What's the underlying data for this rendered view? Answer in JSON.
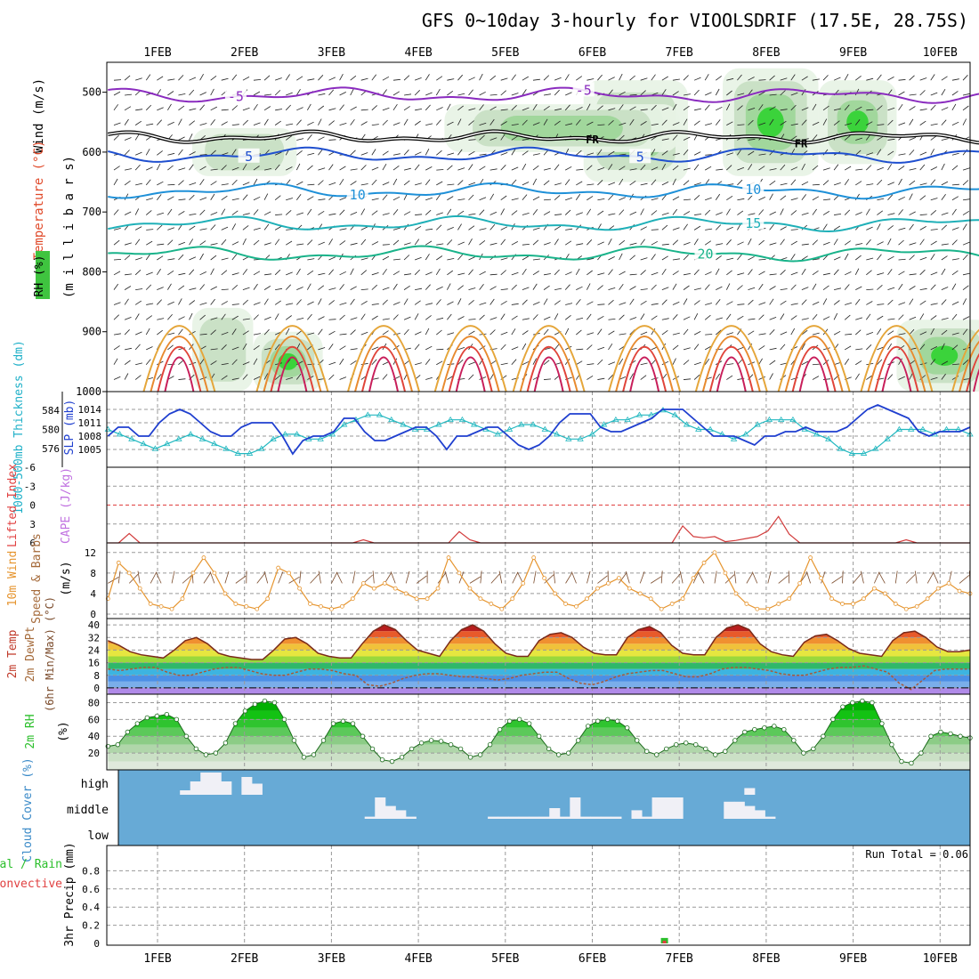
{
  "title": "GFS 0~10day 3-hourly for VIOOLSDRIF (17.5E, 28.75S)",
  "day_labels": [
    "1FEB",
    "2FEB",
    "3FEB",
    "4FEB",
    "5FEB",
    "6FEB",
    "7FEB",
    "8FEB",
    "9FEB",
    "10FEB"
  ],
  "chart_data": [
    {
      "type": "heatmap",
      "panel": "upper-air",
      "ylabel_parts": [
        "Wind (m/s)",
        "Temperature (°C)",
        "RH (%)"
      ],
      "ylabel_pressure": "(m i l l i b a r s)",
      "y_ticks": [
        500,
        600,
        700,
        800,
        900,
        1000
      ],
      "ylim": [
        450,
        1000
      ],
      "freezing_label": "FR",
      "temperature_contours": [
        {
          "value": "-5",
          "color": "#8a2bbf",
          "base_level": 505,
          "labels": [
            {
              "x": 0.9,
              "text": "-5"
            },
            {
              "x": 4.9,
              "text": "-5"
            }
          ]
        },
        {
          "value": "5",
          "color": "#1f4fcf",
          "base_level": 605,
          "labels": [
            {
              "x": 1.05,
              "text": "5"
            },
            {
              "x": 5.55,
              "text": "5"
            }
          ]
        },
        {
          "value": "10",
          "color": "#1e90d8",
          "base_level": 665,
          "labels": [
            {
              "x": 2.3,
              "text": "10"
            },
            {
              "x": 6.85,
              "text": "10"
            }
          ]
        },
        {
          "value": "15",
          "color": "#1fb0b8",
          "base_level": 720,
          "labels": [
            {
              "x": 6.85,
              "text": "15"
            }
          ]
        },
        {
          "value": "20",
          "color": "#19b38a",
          "base_level": 770,
          "labels": [
            {
              "x": 6.3,
              "text": "20"
            }
          ]
        }
      ],
      "freezing_level": 575,
      "moist_regions": [
        {
          "x": [
            4.9,
            6.1
          ],
          "p": [
            480,
            650
          ],
          "level": 3
        },
        {
          "x": [
            6.5,
            7.6
          ],
          "p": [
            460,
            640
          ],
          "level": 3
        },
        {
          "x": [
            7.6,
            8.5
          ],
          "p": [
            480,
            620
          ],
          "level": 3
        },
        {
          "x": [
            3.3,
            6.0
          ],
          "p": [
            520,
            600
          ],
          "level": 2
        },
        {
          "x": [
            0.4,
            1.6
          ],
          "p": [
            560,
            640
          ],
          "level": 1
        },
        {
          "x": [
            0.4,
            1.1
          ],
          "p": [
            860,
            1000
          ],
          "level": 1
        },
        {
          "x": [
            1.1,
            1.9
          ],
          "p": [
            900,
            1000
          ],
          "level": 3
        },
        {
          "x": [
            8.5,
            9.6
          ],
          "p": [
            880,
            1000
          ],
          "level": 3
        }
      ]
    },
    {
      "type": "line",
      "panel": "thickness-slp",
      "ylabel_left": "1000-500mb Thickness (dm)",
      "ylabel_right": "SLP (mb)",
      "y_ticks_left": [
        576,
        580,
        584
      ],
      "y_ticks_right": [
        1005,
        1008,
        1011,
        1014
      ],
      "series": [
        {
          "name": "SLP",
          "color": "#1f3fcf",
          "values": [
            1008,
            1010,
            1010,
            1008,
            1008,
            1011,
            1013,
            1014,
            1013,
            1011,
            1009,
            1008,
            1008,
            1010,
            1011,
            1011,
            1011,
            1008,
            1004,
            1007,
            1008,
            1008,
            1009,
            1012,
            1012,
            1009,
            1007,
            1007,
            1008,
            1009,
            1010,
            1010,
            1008,
            1005,
            1008,
            1008,
            1009,
            1010,
            1010,
            1008,
            1006,
            1005,
            1006,
            1008,
            1011,
            1013,
            1013,
            1013,
            1010,
            1009,
            1009,
            1010,
            1011,
            1012,
            1014,
            1014,
            1014,
            1012,
            1010,
            1008,
            1008,
            1008,
            1007,
            1006,
            1008,
            1008,
            1009,
            1009,
            1010,
            1009,
            1009,
            1009,
            1010,
            1012,
            1014,
            1015,
            1014,
            1013,
            1012,
            1009,
            1008,
            1009,
            1009,
            1009,
            1010
          ]
        },
        {
          "name": "Thickness",
          "color": "#22b8c0",
          "values": [
            580,
            579,
            578,
            577,
            576,
            577,
            578,
            579,
            578,
            577,
            576,
            575,
            575,
            576,
            578,
            579,
            579,
            578,
            578,
            579,
            581,
            582,
            583,
            583,
            582,
            581,
            580,
            580,
            581,
            582,
            582,
            581,
            580,
            579,
            580,
            581,
            581,
            580,
            579,
            578,
            578,
            579,
            581,
            582,
            582,
            583,
            583,
            584,
            583,
            581,
            580,
            580,
            579,
            578,
            579,
            581,
            582,
            582,
            582,
            580,
            579,
            578,
            576,
            575,
            575,
            576,
            578,
            580,
            580,
            580,
            579,
            580,
            580,
            579
          ]
        }
      ]
    },
    {
      "type": "line",
      "panel": "stability",
      "ylabel_left": "Lifted Index",
      "ylabel_right": "CAPE (J/kg)",
      "y_ticks": [
        "-6",
        "-3",
        "0",
        "3",
        "6"
      ],
      "ylim": [
        -6,
        6
      ],
      "series": [
        {
          "name": "Lifted Index",
          "color": "#d23c3c",
          "values": [
            6,
            6,
            4.5,
            6,
            6,
            6,
            6,
            6,
            6,
            6,
            6,
            6,
            6,
            6,
            6,
            6,
            6,
            6,
            6,
            6,
            6,
            6,
            6,
            6,
            5.5,
            6,
            6,
            6,
            6,
            6,
            6,
            6,
            6,
            4.2,
            5.5,
            6,
            6,
            6,
            6,
            6,
            6,
            6,
            6,
            6,
            6,
            6,
            6,
            6,
            6,
            6,
            6,
            6,
            6,
            6,
            3.3,
            5,
            5.2,
            5,
            5.8,
            5.6,
            5.3,
            5,
            4.1,
            1.8,
            4.6,
            6,
            6,
            6,
            6,
            6,
            6,
            6,
            6,
            6,
            6,
            5.5,
            6,
            6,
            6,
            6,
            6,
            6
          ]
        }
      ]
    },
    {
      "type": "line",
      "panel": "wind10m",
      "ylabel_left": "10m Wind",
      "ylabel_mid": "Speed & Barbs",
      "ylabel_units": "(m/s)",
      "y_ticks": [
        0,
        4,
        8,
        12
      ],
      "ylim": [
        0,
        13
      ],
      "series": [
        {
          "name": "10m Wind Speed",
          "color": "#e6952f",
          "values": [
            3,
            10,
            8,
            5,
            2,
            1.5,
            1,
            3,
            8,
            11,
            8,
            4,
            2,
            1.5,
            1,
            3,
            9,
            8,
            5,
            2,
            1.5,
            1,
            1.5,
            3,
            6,
            5,
            6,
            5,
            4,
            3,
            3,
            5,
            11,
            8,
            5,
            3,
            2,
            1,
            3,
            6,
            11,
            7,
            4,
            2,
            1.5,
            3,
            5,
            6,
            7,
            5,
            4,
            3,
            1,
            2,
            3,
            7,
            10,
            12,
            8,
            4,
            2,
            1,
            1,
            2,
            3,
            6,
            11,
            7,
            3,
            2,
            2,
            3,
            5,
            4,
            2,
            1,
            1.5,
            3,
            5,
            6,
            4.5,
            4
          ]
        }
      ]
    },
    {
      "type": "area",
      "panel": "temperature2m",
      "ylabel_left": "2m Temp",
      "ylabel_mid": "2m DewPt",
      "ylabel_right": "(6hr Min/Max) (°C)",
      "y_ticks": [
        0,
        8,
        16,
        24,
        32,
        40
      ],
      "ylim": [
        -4,
        44
      ],
      "series": [
        {
          "name": "2m Temp",
          "color": "#7a2a1a",
          "values": [
            30,
            27,
            23,
            21,
            20,
            19,
            24,
            30,
            32,
            28,
            22,
            20,
            19,
            18,
            18,
            24,
            31,
            32,
            28,
            22,
            20,
            19,
            19,
            28,
            36,
            40,
            37,
            30,
            24,
            22,
            20,
            30,
            37,
            40,
            36,
            28,
            22,
            20,
            20,
            30,
            34,
            35,
            32,
            26,
            22,
            21,
            21,
            32,
            37,
            39,
            35,
            27,
            22,
            21,
            21,
            32,
            38,
            40,
            37,
            28,
            23,
            21,
            20,
            29,
            33,
            34,
            30,
            25,
            22,
            21,
            20,
            30,
            35,
            36,
            32,
            26,
            23,
            23,
            24
          ]
        },
        {
          "name": "2m DewPt",
          "color": "#a85a3a",
          "values": [
            12,
            11,
            12,
            13,
            13,
            10,
            8,
            8,
            10,
            12,
            13,
            13,
            11,
            9,
            8,
            8,
            10,
            12,
            12,
            11,
            9,
            8,
            2,
            1,
            3,
            6,
            8,
            9,
            9,
            8,
            7,
            7,
            6,
            5,
            6,
            8,
            9,
            10,
            10,
            6,
            3,
            2,
            4,
            7,
            9,
            10,
            11,
            11,
            9,
            7,
            7,
            9,
            12,
            13,
            13,
            12,
            11,
            9,
            8,
            8,
            10,
            12,
            13,
            13,
            14,
            12,
            10,
            3,
            -1,
            5,
            11,
            12,
            12,
            12
          ]
        }
      ]
    },
    {
      "type": "area",
      "panel": "rh2m",
      "ylabel": "2m RH",
      "ylabel_units": "(%)",
      "y_ticks": [
        20,
        40,
        60,
        80
      ],
      "ylim": [
        0,
        90
      ],
      "series": [
        {
          "name": "2m RH",
          "color": "#2bbf2b",
          "values": [
            28,
            30,
            45,
            55,
            62,
            64,
            66,
            60,
            40,
            25,
            18,
            20,
            32,
            55,
            70,
            78,
            82,
            80,
            60,
            35,
            15,
            18,
            35,
            55,
            58,
            55,
            40,
            25,
            12,
            10,
            15,
            25,
            32,
            35,
            34,
            30,
            25,
            15,
            18,
            30,
            48,
            58,
            60,
            55,
            40,
            25,
            18,
            20,
            35,
            52,
            58,
            60,
            58,
            50,
            35,
            22,
            18,
            25,
            30,
            32,
            30,
            25,
            18,
            22,
            35,
            45,
            48,
            50,
            52,
            48,
            35,
            20,
            25,
            40,
            60,
            75,
            80,
            82,
            80,
            55,
            30,
            10,
            8,
            20,
            40,
            45,
            43,
            40,
            38
          ]
        }
      ]
    },
    {
      "type": "bar",
      "panel": "cloud-cover",
      "ylabel": "Cloud Cover (%)",
      "y_tick_labels": [
        "high",
        "middle",
        "low"
      ],
      "high": [
        0,
        0,
        0,
        0,
        0,
        0,
        0.2,
        0.6,
        1,
        1,
        0.6,
        0,
        0.8,
        0.5,
        0,
        0,
        0,
        0,
        0,
        0,
        0,
        0,
        0,
        0,
        0,
        0,
        0,
        0,
        0,
        0,
        0,
        0,
        0,
        0,
        0,
        0,
        0,
        0,
        0,
        0,
        0,
        0,
        0,
        0,
        0,
        0,
        0,
        0,
        0,
        0,
        0,
        0,
        0,
        0,
        0,
        0,
        0,
        0,
        0,
        0,
        0,
        0.3,
        0,
        0,
        0,
        0,
        0,
        0,
        0,
        0,
        0,
        0,
        0,
        0,
        0,
        0,
        0,
        0,
        0,
        0,
        0,
        0,
        0
      ],
      "middle": [
        0,
        0,
        0,
        0,
        0,
        0,
        0,
        0,
        0,
        0,
        0,
        0,
        0,
        0,
        0,
        0,
        0,
        0,
        0,
        0,
        0,
        0,
        0,
        0,
        0.1,
        1,
        0.6,
        0.4,
        0.1,
        0,
        0,
        0,
        0,
        0,
        0,
        0,
        0.1,
        0.1,
        0.1,
        0.1,
        0.1,
        0.1,
        0.5,
        0.1,
        1,
        0.1,
        0.1,
        0.1,
        0.1,
        0,
        0.4,
        0.1,
        1,
        1,
        1,
        0,
        0,
        0,
        0,
        0.8,
        0.8,
        0.6,
        0.4,
        0.1,
        0,
        0,
        0,
        0,
        0,
        0,
        0,
        0,
        0,
        0,
        0,
        0,
        0,
        0,
        0,
        0,
        0,
        0,
        0
      ],
      "low": []
    },
    {
      "type": "bar",
      "panel": "precipitation",
      "ylabel_left": "Total / Rain",
      "ylabel_left2": "Convective",
      "ylabel_right": "3hr Precip (mm)",
      "y_ticks": [
        "0",
        "0.2",
        "0.4",
        "0.6",
        "0.8"
      ],
      "ylim": [
        0,
        1
      ],
      "run_total": "Run Total = 0.06",
      "bars": [
        {
          "x": 5.83,
          "total": 0.06,
          "convective": 0.03
        }
      ]
    }
  ]
}
